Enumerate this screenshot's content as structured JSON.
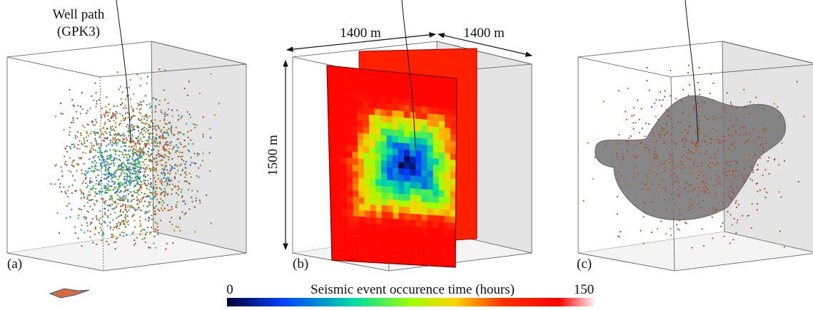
{
  "annotations": {
    "well_label": "Well path",
    "well_id": "(GPK3)",
    "width_1": "1400 m",
    "width_2": "1400 m",
    "height": "1500 m"
  },
  "panels": [
    {
      "label": "(a)"
    },
    {
      "label": "(b)"
    },
    {
      "label": "(c)"
    }
  ],
  "colorbar": {
    "title": "Seismic event occurence time (hours)",
    "min": 0,
    "max": 150
  }
}
